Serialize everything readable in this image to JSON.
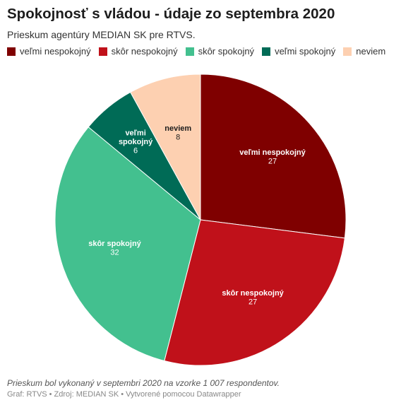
{
  "chart_data": {
    "type": "pie",
    "title": "Spokojnosť s vládou - údaje zo septembra 2020",
    "subtitle": "Prieskum agentúry MEDIAN SK pre RTVS.",
    "legend_position": "top-left",
    "slices": [
      {
        "label": "veľmi nespokojný",
        "value": 27,
        "color": "#7f0000",
        "text_color": "#ffffff",
        "label_lines": [
          "veľmi nespokojný"
        ]
      },
      {
        "label": "skôr nespokojný",
        "value": 27,
        "color": "#c0111a",
        "text_color": "#ffffff",
        "label_lines": [
          "skôr nespokojný"
        ]
      },
      {
        "label": "skôr spokojný",
        "value": 32,
        "color": "#43c08f",
        "text_color": "#ffffff",
        "label_lines": [
          "skôr spokojný"
        ]
      },
      {
        "label": "veľmi spokojný",
        "value": 6,
        "color": "#006b56",
        "text_color": "#ffffff",
        "label_lines": [
          "veľmi",
          "spokojný"
        ]
      },
      {
        "label": "neviem",
        "value": 8,
        "color": "#fdd0b1",
        "text_color": "#1d1d1d",
        "label_lines": [
          "neviem"
        ]
      }
    ]
  },
  "notes": "Prieskum bol vykonaný v septembri 2020 na vzorke 1 007 respondentov.",
  "footer": {
    "credit": "Graf: RTVS",
    "source": "Zdroj: MEDIAN SK",
    "tool": "Vytvorené pomocou Datawrapper"
  }
}
